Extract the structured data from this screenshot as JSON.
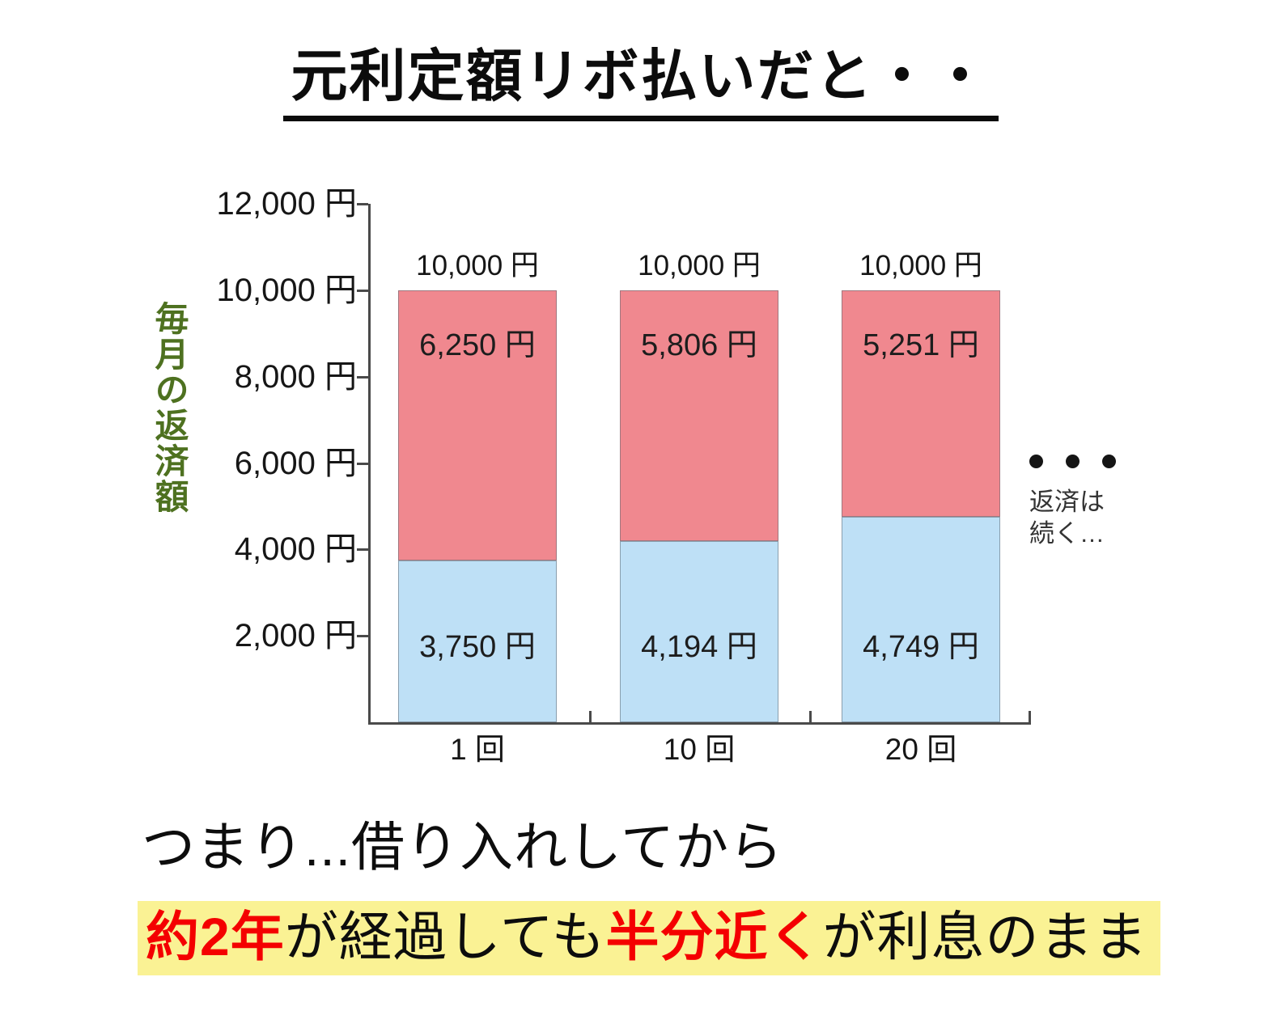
{
  "title": {
    "text": "元利定額リボ払いだと・・"
  },
  "chart_data": {
    "type": "bar",
    "stacked": true,
    "title": "元利定額リボ払いだと・・",
    "categories": [
      "1 回",
      "10 回",
      "20 回"
    ],
    "series": [
      {
        "name": "lower-blue-segment",
        "color": "#bee0f6",
        "values": [
          3750,
          4194,
          4749
        ],
        "labels": [
          "3,750 円",
          "4,194 円",
          "4,749 円"
        ]
      },
      {
        "name": "upper-pink-segment",
        "color": "#f0888f",
        "values": [
          6250,
          5806,
          5251
        ],
        "labels": [
          "6,250 円",
          "5,806 円",
          "5,251 円"
        ]
      }
    ],
    "totals": {
      "values": [
        10000,
        10000,
        10000
      ],
      "labels": [
        "10,000 円",
        "10,000 円",
        "10,000 円"
      ]
    },
    "ylabel": "毎月の返済額",
    "ylabel_color": "#4e7120",
    "xlabel": "",
    "ylim": [
      0,
      12000
    ],
    "yticks": [
      {
        "value": 12000,
        "label": "12,000 円"
      },
      {
        "value": 10000,
        "label": "10,000 円"
      },
      {
        "value": 8000,
        "label": "8,000 円"
      },
      {
        "value": 6000,
        "label": "6,000 円"
      },
      {
        "value": 4000,
        "label": "4,000 円"
      },
      {
        "value": 2000,
        "label": "2,000 円"
      }
    ],
    "grid": false,
    "legend": "none",
    "annotation": {
      "dots": "・・・",
      "line1": "返済は",
      "line2": "続く…"
    }
  },
  "caption": {
    "line1": "つまり...借り入れしてから",
    "line2": {
      "highlight_color": "#faf294",
      "accent_color": "#f40000",
      "segments": [
        {
          "text": "約2年",
          "color": "#f40000",
          "bold": true
        },
        {
          "text": "が経過しても",
          "color": "#0d0d0d",
          "bold": false
        },
        {
          "text": "半分近く",
          "color": "#f40000",
          "bold": true
        },
        {
          "text": "が利息のまま",
          "color": "#0d0d0d",
          "bold": false
        }
      ]
    }
  }
}
